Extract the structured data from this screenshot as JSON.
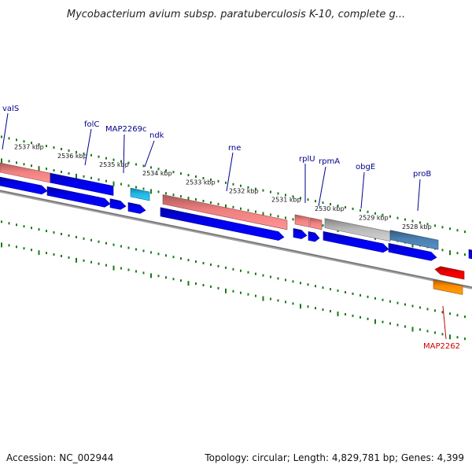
{
  "title": "Mycobacterium avium subsp. paratuberculosis K-10, complete g...",
  "footer": {
    "accession": "Accession: NC_002944",
    "summary": "Topology: circular; Length: 4,829,781 bp; Genes: 4,399"
  },
  "colors": {
    "label_blue": "#00008b",
    "label_red": "#cc0000",
    "cds_blue": "#0000ee",
    "rna_pink": "#f08080",
    "gray_feature": "#b8b8b8",
    "steel_blue": "#4a7fb0",
    "cyan_feature": "#22b5e6",
    "red_feature": "#ee0000",
    "orange_feature": "#ff8c00",
    "tick_green": "#1a7a1a",
    "backbone": "#888888"
  },
  "kbp_labels": [
    "2537 kbp",
    "2536 kbp",
    "2535 kbp",
    "2534 kbp",
    "2533 kbp",
    "2532 kbp",
    "2531 kbp",
    "2530 kbp",
    "2529 kbp",
    "2528 kbp"
  ],
  "gene_labels": [
    {
      "name": "valS",
      "color": "blue"
    },
    {
      "name": "folC",
      "color": "blue"
    },
    {
      "name": "MAP2269c",
      "color": "blue"
    },
    {
      "name": "ndk",
      "color": "blue"
    },
    {
      "name": "rne",
      "color": "blue"
    },
    {
      "name": "rplU",
      "color": "blue"
    },
    {
      "name": "rpmA",
      "color": "blue"
    },
    {
      "name": "obgE",
      "color": "blue"
    },
    {
      "name": "proB",
      "color": "blue"
    },
    {
      "name": "MAP2262",
      "color": "red"
    }
  ]
}
